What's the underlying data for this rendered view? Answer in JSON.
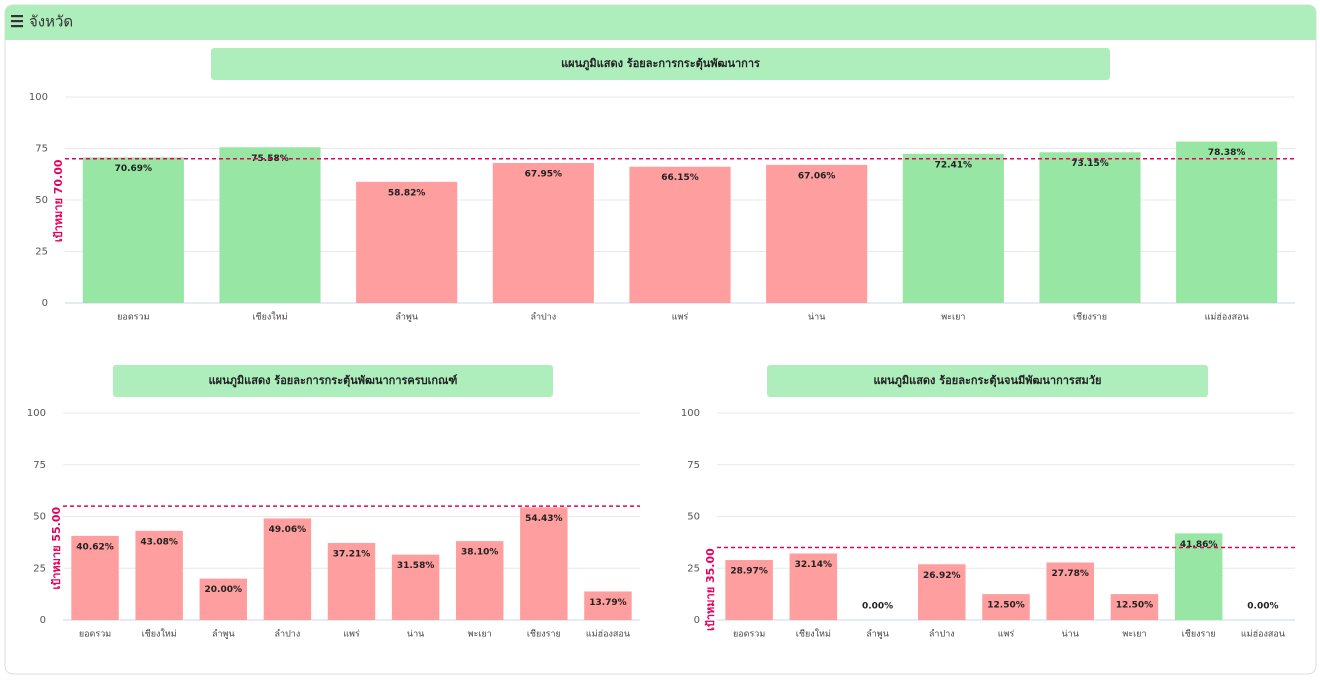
{
  "header": {
    "title": "จังหวัด"
  },
  "chart_data": [
    {
      "type": "bar",
      "title": "แผนภูมิแสดง ร้อยละการกระตุ้นพัฒนาการ",
      "categories": [
        "ยอดรวม",
        "เชียงใหม่",
        "ลำพูน",
        "ลำปาง",
        "แพร่",
        "น่าน",
        "พะเยา",
        "เชียงราย",
        "แม่ฮ่องสอน"
      ],
      "values": [
        70.69,
        75.58,
        58.82,
        67.95,
        66.15,
        67.06,
        72.41,
        73.15,
        78.38
      ],
      "value_labels": [
        "70.69%",
        "75.58%",
        "58.82%",
        "67.95%",
        "66.15%",
        "67.06%",
        "72.41%",
        "73.15%",
        "78.38%"
      ],
      "colors": [
        "#98e6a3",
        "#98e6a3",
        "#ff9e9e",
        "#ff9e9e",
        "#ff9e9e",
        "#ff9e9e",
        "#98e6a3",
        "#98e6a3",
        "#98e6a3"
      ],
      "ylim": [
        0,
        100
      ],
      "yticks": [
        0,
        25,
        50,
        75,
        100
      ],
      "grid": true,
      "target": {
        "value": 70,
        "label": "เป้าหมาย 70.00",
        "color": "#e6005c"
      }
    },
    {
      "type": "bar",
      "title": "แผนภูมิแสดง ร้อยละการกระตุ้นพัฒนาการครบเกณฑ์",
      "categories": [
        "ยอดรวม",
        "เชียงใหม่",
        "ลำพูน",
        "ลำปาง",
        "แพร่",
        "น่าน",
        "พะเยา",
        "เชียงราย",
        "แม่ฮ่องสอน"
      ],
      "values": [
        40.62,
        43.08,
        20.0,
        49.06,
        37.21,
        31.58,
        38.1,
        54.43,
        13.79
      ],
      "value_labels": [
        "40.62%",
        "43.08%",
        "20.00%",
        "49.06%",
        "37.21%",
        "31.58%",
        "38.10%",
        "54.43%",
        "13.79%"
      ],
      "colors": [
        "#ff9e9e",
        "#ff9e9e",
        "#ff9e9e",
        "#ff9e9e",
        "#ff9e9e",
        "#ff9e9e",
        "#ff9e9e",
        "#ff9e9e",
        "#ff9e9e"
      ],
      "ylim": [
        0,
        100
      ],
      "yticks": [
        0,
        25,
        50,
        75,
        100
      ],
      "grid": true,
      "target": {
        "value": 55,
        "label": "เป้าหมาย 55.00",
        "color": "#e6005c"
      }
    },
    {
      "type": "bar",
      "title": "แผนภูมิแสดง ร้อยละกระตุ้นจนมีพัฒนาการสมวัย",
      "categories": [
        "ยอดรวม",
        "เชียงใหม่",
        "ลำพูน",
        "ลำปาง",
        "แพร่",
        "น่าน",
        "พะเยา",
        "เชียงราย",
        "แม่ฮ่องสอน"
      ],
      "values": [
        28.97,
        32.14,
        0.0,
        26.92,
        12.5,
        27.78,
        12.5,
        41.86,
        0.0
      ],
      "value_labels": [
        "28.97%",
        "32.14%",
        "0.00%",
        "26.92%",
        "12.50%",
        "27.78%",
        "12.50%",
        "41.86%",
        "0.00%"
      ],
      "colors": [
        "#ff9e9e",
        "#ff9e9e",
        "#ff9e9e",
        "#ff9e9e",
        "#ff9e9e",
        "#ff9e9e",
        "#ff9e9e",
        "#98e6a3",
        "#ff9e9e"
      ],
      "ylim": [
        0,
        100
      ],
      "yticks": [
        0,
        25,
        50,
        75,
        100
      ],
      "grid": true,
      "target": {
        "value": 35,
        "label": "เป้าหมาย 35.00",
        "color": "#e6005c"
      }
    }
  ]
}
